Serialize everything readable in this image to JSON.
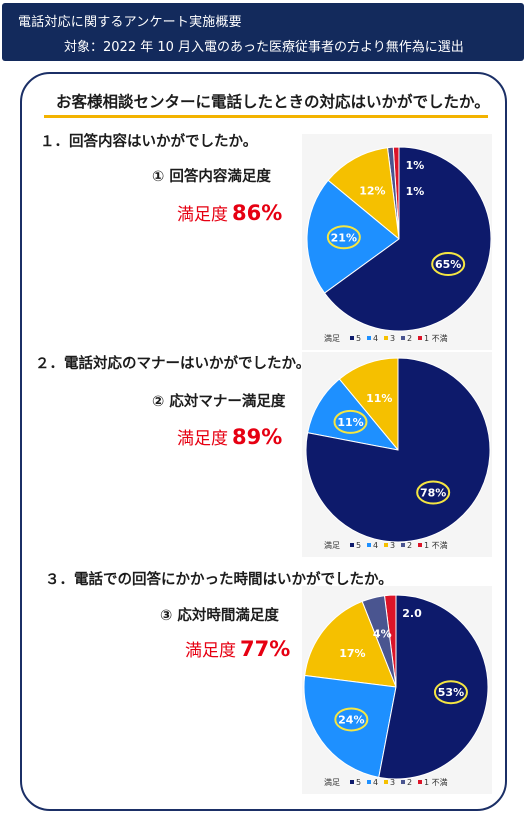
{
  "header": {
    "title": "電話対応に関するアンケート実施概要",
    "subtitle": "対象：2022 年 10 月入電のあった医療従事者の方より無作為に選出"
  },
  "question": "お客様相談センターに電話したときの対応はいかがでしたか。",
  "sections": [
    {
      "title": "１．回答内容はいかがでしたか。",
      "chart_title": "① 回答内容満足度",
      "sat_label": "満足度",
      "sat_value": "86%"
    },
    {
      "title": "２．電話対応のマナーはいかがでしたか。",
      "chart_title": "② 応対マナー満足度",
      "sat_label": "満足度",
      "sat_value": "89%"
    },
    {
      "title": "３．電話での回答にかかった時間はいかがでしたか。",
      "chart_title": "③ 応対時間満足度",
      "sat_label": "満足度",
      "sat_value": "77%"
    }
  ],
  "colors": {
    "5": "#0d1a6b",
    "4": "#1e90ff",
    "3": "#f5c000",
    "2": "#4a5590",
    "1": "#dc1428",
    "highlight": "#f5e642"
  },
  "chart_data": [
    {
      "type": "pie",
      "title": "① 回答内容満足度",
      "legend": {
        "title": "満足",
        "entries": [
          "5",
          "4",
          "3",
          "2",
          "1 不満"
        ],
        "position": "bottom"
      },
      "slices": [
        {
          "category": "5",
          "value": 65,
          "label": "65%",
          "highlighted": true
        },
        {
          "category": "4",
          "value": 21,
          "label": "21%",
          "highlighted": true
        },
        {
          "category": "3",
          "value": 12,
          "label": "12%",
          "highlighted": false
        },
        {
          "category": "2",
          "value": 1,
          "label": "1%",
          "highlighted": false
        },
        {
          "category": "1",
          "value": 1,
          "label": "1%",
          "highlighted": false
        }
      ]
    },
    {
      "type": "pie",
      "title": "② 応対マナー満足度",
      "legend": {
        "title": "満足",
        "entries": [
          "5",
          "4",
          "3",
          "2",
          "1 不満"
        ],
        "position": "bottom"
      },
      "slices": [
        {
          "category": "5",
          "value": 78,
          "label": "78%",
          "highlighted": true
        },
        {
          "category": "4",
          "value": 11,
          "label": "11%",
          "highlighted": true
        },
        {
          "category": "3",
          "value": 11,
          "label": "11%",
          "highlighted": false
        },
        {
          "category": "2",
          "value": 0,
          "label": "",
          "highlighted": false
        },
        {
          "category": "1",
          "value": 0,
          "label": "",
          "highlighted": false
        }
      ]
    },
    {
      "type": "pie",
      "title": "③ 応対時間満足度",
      "legend": {
        "title": "満足",
        "entries": [
          "5",
          "4",
          "3",
          "2",
          "1 不満"
        ],
        "position": "bottom"
      },
      "slices": [
        {
          "category": "5",
          "value": 53,
          "label": "53%",
          "highlighted": true
        },
        {
          "category": "4",
          "value": 24,
          "label": "24%",
          "highlighted": true
        },
        {
          "category": "3",
          "value": 17,
          "label": "17%",
          "highlighted": false
        },
        {
          "category": "2",
          "value": 4,
          "label": "4%",
          "highlighted": false
        },
        {
          "category": "1",
          "value": 2,
          "label": "2.0",
          "highlighted": false
        }
      ]
    }
  ]
}
